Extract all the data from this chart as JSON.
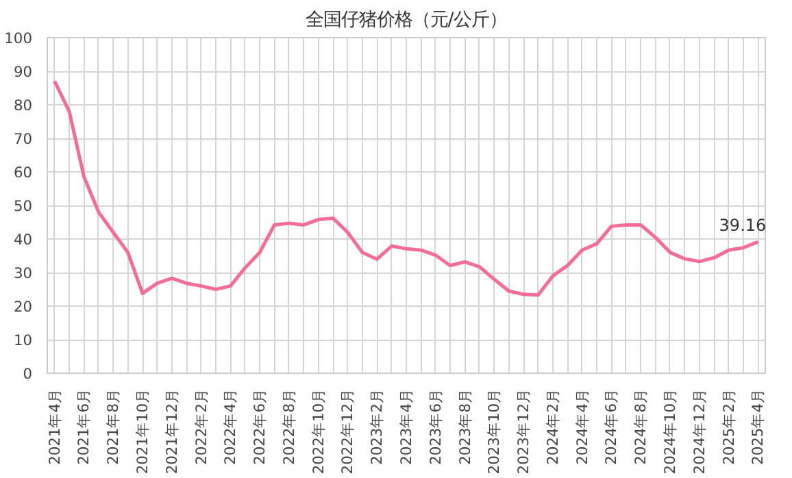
{
  "chart_data": {
    "type": "line",
    "title": "全国仔猪价格（元/公斤）",
    "categories": [
      "2021年4月",
      null,
      "2021年6月",
      null,
      "2021年8月",
      null,
      "2021年10月",
      null,
      "2021年12月",
      null,
      "2022年2月",
      null,
      "2022年4月",
      null,
      "2022年6月",
      null,
      "2022年8月",
      null,
      "2022年10月",
      null,
      "2022年12月",
      null,
      "2023年2月",
      null,
      "2023年4月",
      null,
      "2023年6月",
      null,
      "2023年8月",
      null,
      "2023年10月",
      null,
      "2023年12月",
      null,
      "2024年2月",
      null,
      "2024年4月",
      null,
      "2024年6月",
      null,
      "2024年8月",
      null,
      "2024年10月",
      null,
      "2024年12月",
      null,
      "2025年2月",
      null,
      "2025年4月"
    ],
    "series": [
      {
        "color": "#f46d94",
        "values": [
          87,
          78,
          58.6,
          48,
          42,
          36,
          23.8,
          26.8,
          28.3,
          26.8,
          26,
          25,
          26,
          31.4,
          36,
          44.2,
          44.7,
          44.2,
          45.8,
          46.2,
          42,
          36,
          34,
          37.9,
          37.1,
          36.7,
          35.2,
          32.1,
          33.2,
          31.7,
          28,
          24.5,
          23.5,
          23.3,
          29,
          32.1,
          36.7,
          38.6,
          43.8,
          44.2,
          44.2,
          40.5,
          36,
          34.1,
          33.3,
          34.4,
          36.7,
          37.4,
          39.16
        ],
        "value_labels": [
          null,
          null,
          null,
          null,
          null,
          null,
          null,
          null,
          null,
          null,
          null,
          null,
          null,
          null,
          null,
          null,
          null,
          null,
          null,
          null,
          null,
          null,
          null,
          null,
          null,
          null,
          null,
          null,
          null,
          null,
          null,
          null,
          null,
          null,
          null,
          null,
          null,
          null,
          null,
          null,
          null,
          null,
          null,
          null,
          null,
          null,
          null,
          null,
          "39.16"
        ]
      }
    ],
    "ylim": [
      0,
      100
    ],
    "yticks": [
      0,
      10,
      20,
      30,
      40,
      50,
      60,
      70,
      80,
      90,
      100
    ],
    "grid": true,
    "marker": "none",
    "line_style": "solid"
  }
}
